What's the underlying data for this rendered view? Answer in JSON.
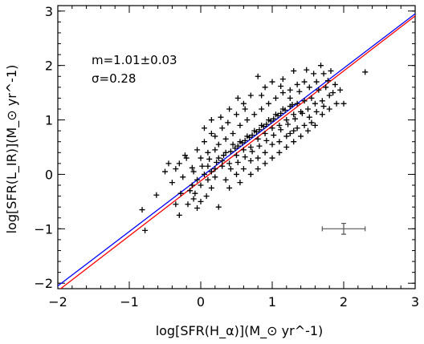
{
  "chart_data": {
    "type": "scatter",
    "title": "",
    "xlabel": "log[SFR(H_α)](M_⊙ yr^-1)",
    "ylabel": "log[SFR(L_IR)](M_⊙ yr^-1)",
    "xlim": [
      -2,
      3
    ],
    "ylim": [
      -2.1,
      3.1
    ],
    "x_ticks": [
      -2,
      -1,
      0,
      1,
      2,
      3
    ],
    "y_ticks": [
      -2,
      -1,
      0,
      1,
      2,
      3
    ],
    "x_tick_labels": [
      "−2",
      "−1",
      "0",
      "1",
      "2",
      "3"
    ],
    "y_tick_labels": [
      "−2",
      "−1",
      "0",
      "1",
      "2",
      "3"
    ],
    "grid": false,
    "annotations": {
      "slope": "m=1.01±0.03",
      "scatter": "σ=0.28"
    },
    "lines": [
      {
        "color": "#0000ff",
        "slope": 1.0,
        "intercept": -0.05
      },
      {
        "color": "#ff0000",
        "slope": 1.01,
        "intercept": -0.12
      }
    ],
    "error_bar": {
      "x": 2.0,
      "y": -1.0,
      "xerr": 0.3,
      "yerr": 0.1,
      "color": "#555555"
    },
    "points": [
      [
        -0.82,
        -0.65
      ],
      [
        -0.78,
        -1.03
      ],
      [
        -0.62,
        -0.38
      ],
      [
        -0.45,
        0.2
      ],
      [
        -0.3,
        0.2
      ],
      [
        -0.35,
        0.1
      ],
      [
        -0.2,
        0.3
      ],
      [
        -0.25,
        -0.05
      ],
      [
        -0.15,
        -0.3
      ],
      [
        -0.12,
        -0.2
      ],
      [
        -0.05,
        -0.1
      ],
      [
        -0.1,
        0.05
      ],
      [
        0.0,
        -0.2
      ],
      [
        0.05,
        0.0
      ],
      [
        0.1,
        0.15
      ],
      [
        -0.28,
        -0.35
      ],
      [
        -0.18,
        -0.55
      ],
      [
        -0.05,
        -0.62
      ],
      [
        -0.1,
        -0.45
      ],
      [
        0.08,
        -0.4
      ],
      [
        -0.3,
        -0.75
      ],
      [
        0.15,
        -0.25
      ],
      [
        0.2,
        -0.05
      ],
      [
        0.15,
        0.05
      ],
      [
        0.25,
        0.3
      ],
      [
        0.3,
        0.15
      ],
      [
        0.35,
        0.4
      ],
      [
        0.4,
        0.2
      ],
      [
        0.2,
        0.45
      ],
      [
        0.1,
        0.4
      ],
      [
        0.45,
        0.55
      ],
      [
        0.5,
        0.35
      ],
      [
        0.55,
        0.6
      ],
      [
        0.6,
        0.45
      ],
      [
        0.65,
        0.7
      ],
      [
        0.7,
        0.5
      ],
      [
        0.75,
        0.8
      ],
      [
        0.8,
        0.65
      ],
      [
        0.85,
        0.9
      ],
      [
        0.9,
        0.75
      ],
      [
        0.95,
        1.0
      ],
      [
        1.0,
        0.85
      ],
      [
        1.05,
        1.1
      ],
      [
        1.1,
        0.9
      ],
      [
        1.15,
        1.2
      ],
      [
        1.2,
        1.0
      ],
      [
        1.25,
        1.25
      ],
      [
        1.3,
        1.1
      ],
      [
        1.35,
        1.3
      ],
      [
        1.4,
        1.15
      ],
      [
        1.45,
        1.35
      ],
      [
        1.5,
        1.2
      ],
      [
        1.55,
        1.4
      ],
      [
        1.6,
        1.3
      ],
      [
        1.65,
        1.55
      ],
      [
        1.7,
        1.35
      ],
      [
        1.75,
        1.6
      ],
      [
        1.8,
        1.45
      ],
      [
        1.85,
        1.5
      ],
      [
        1.9,
        1.3
      ],
      [
        1.68,
        2.0
      ],
      [
        1.72,
        1.85
      ],
      [
        1.82,
        1.9
      ],
      [
        2.0,
        1.3
      ],
      [
        2.3,
        1.88
      ],
      [
        0.35,
        -0.1
      ],
      [
        0.5,
        0.0
      ],
      [
        0.4,
        -0.25
      ],
      [
        0.6,
        0.1
      ],
      [
        0.7,
        0.25
      ],
      [
        0.8,
        0.3
      ],
      [
        0.9,
        0.4
      ],
      [
        1.0,
        0.55
      ],
      [
        1.1,
        0.6
      ],
      [
        1.2,
        0.7
      ],
      [
        1.3,
        0.8
      ],
      [
        0.45,
        0.75
      ],
      [
        0.55,
        0.9
      ],
      [
        0.65,
        1.0
      ],
      [
        0.75,
        1.1
      ],
      [
        0.85,
        1.2
      ],
      [
        0.95,
        1.3
      ],
      [
        1.05,
        1.4
      ],
      [
        1.15,
        1.5
      ],
      [
        1.25,
        1.55
      ],
      [
        1.35,
        1.65
      ],
      [
        0.6,
        1.3
      ],
      [
        0.7,
        1.45
      ],
      [
        0.3,
        0.85
      ],
      [
        0.2,
        0.7
      ],
      [
        0.9,
        1.6
      ],
      [
        1.0,
        1.7
      ],
      [
        1.15,
        1.75
      ],
      [
        1.3,
        1.9
      ],
      [
        0.8,
        1.8
      ],
      [
        1.45,
        1.7
      ],
      [
        0.0,
        0.3
      ],
      [
        -0.05,
        0.45
      ],
      [
        0.05,
        0.6
      ],
      [
        0.15,
        0.75
      ],
      [
        0.25,
        0.55
      ],
      [
        0.35,
        0.65
      ],
      [
        0.42,
        0.1
      ],
      [
        0.52,
        0.22
      ],
      [
        0.62,
        0.32
      ],
      [
        0.72,
        0.42
      ],
      [
        0.82,
        0.52
      ],
      [
        0.92,
        0.62
      ],
      [
        1.02,
        0.72
      ],
      [
        1.12,
        0.82
      ],
      [
        1.22,
        0.92
      ],
      [
        1.32,
        1.02
      ],
      [
        1.42,
        1.12
      ],
      [
        1.52,
        1.05
      ],
      [
        1.62,
        1.15
      ],
      [
        1.72,
        1.25
      ],
      [
        0.48,
        0.48
      ],
      [
        0.58,
        0.58
      ],
      [
        0.68,
        0.68
      ],
      [
        0.78,
        0.78
      ],
      [
        0.88,
        0.88
      ],
      [
        0.98,
        0.98
      ],
      [
        1.08,
        1.08
      ],
      [
        1.18,
        1.18
      ],
      [
        1.28,
        1.28
      ],
      [
        0.38,
        0.95
      ],
      [
        0.5,
        1.1
      ],
      [
        0.62,
        1.2
      ],
      [
        0.1,
        -0.1
      ],
      [
        0.2,
        0.1
      ],
      [
        0.3,
        0.25
      ],
      [
        0.02,
        0.15
      ],
      [
        -0.12,
        0.12
      ],
      [
        0.12,
        0.28
      ],
      [
        0.22,
        0.22
      ],
      [
        0.32,
        0.35
      ],
      [
        0.42,
        0.42
      ],
      [
        0.52,
        0.52
      ],
      [
        0.62,
        0.62
      ],
      [
        0.72,
        0.72
      ],
      [
        0.82,
        0.82
      ],
      [
        0.92,
        0.92
      ],
      [
        1.02,
        1.02
      ],
      [
        1.12,
        1.12
      ],
      [
        0.9,
        0.2
      ],
      [
        1.0,
        0.3
      ],
      [
        1.1,
        0.4
      ],
      [
        1.2,
        0.5
      ],
      [
        1.3,
        0.6
      ],
      [
        1.4,
        0.7
      ],
      [
        1.5,
        0.8
      ],
      [
        1.6,
        0.9
      ],
      [
        0.7,
        0.0
      ],
      [
        0.8,
        0.1
      ],
      [
        0.55,
        -0.15
      ],
      [
        -0.4,
        -0.15
      ],
      [
        -0.5,
        0.05
      ],
      [
        -0.22,
        0.35
      ],
      [
        -0.08,
        -0.35
      ],
      [
        0.0,
        -0.5
      ],
      [
        0.25,
        -0.6
      ],
      [
        -0.35,
        -0.55
      ],
      [
        0.05,
        0.85
      ],
      [
        0.15,
        1.0
      ],
      [
        0.28,
        1.05
      ],
      [
        0.4,
        1.2
      ],
      [
        0.52,
        1.4
      ],
      [
        0.85,
        1.45
      ],
      [
        1.12,
        1.62
      ],
      [
        1.25,
        1.4
      ],
      [
        1.38,
        1.52
      ],
      [
        1.52,
        1.6
      ],
      [
        1.62,
        1.7
      ],
      [
        1.58,
        1.85
      ],
      [
        1.48,
        1.92
      ],
      [
        1.78,
        1.72
      ],
      [
        1.88,
        1.65
      ],
      [
        1.95,
        1.55
      ],
      [
        1.7,
        1.1
      ],
      [
        1.8,
        1.2
      ],
      [
        1.55,
        0.95
      ],
      [
        1.45,
        0.9
      ],
      [
        1.35,
        0.85
      ],
      [
        1.25,
        0.75
      ]
    ]
  }
}
